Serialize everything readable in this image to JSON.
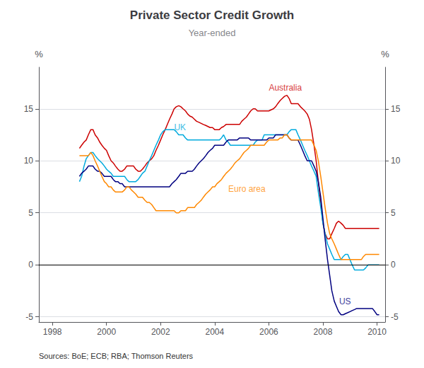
{
  "chart_data": {
    "type": "line",
    "title": "Private Sector Credit Growth",
    "subtitle": "Year-ended",
    "ylabel": "%",
    "y2label": "%",
    "source": "Sources: BoE; ECB; RBA; Thomson Reuters",
    "grid": true,
    "xlim": [
      1997.5,
      2010.3
    ],
    "xticks": [
      1998,
      2000,
      2002,
      2004,
      2006,
      2008,
      2010
    ],
    "ylim": [
      -5.5,
      19
    ],
    "yticks": [
      -5,
      0,
      5,
      10,
      15
    ],
    "y2lim": [
      -5.5,
      19
    ],
    "y2ticks": [
      -5,
      0,
      5,
      10,
      15
    ],
    "x": [
      1999.0,
      1999.08,
      1999.17,
      1999.25,
      1999.33,
      1999.42,
      1999.5,
      1999.58,
      1999.67,
      1999.75,
      1999.83,
      1999.92,
      2000.0,
      2000.08,
      2000.17,
      2000.25,
      2000.33,
      2000.42,
      2000.5,
      2000.58,
      2000.67,
      2000.75,
      2000.83,
      2000.92,
      2001.0,
      2001.08,
      2001.17,
      2001.25,
      2001.33,
      2001.42,
      2001.5,
      2001.58,
      2001.67,
      2001.75,
      2001.83,
      2001.92,
      2002.0,
      2002.08,
      2002.17,
      2002.25,
      2002.33,
      2002.42,
      2002.5,
      2002.58,
      2002.67,
      2002.75,
      2002.83,
      2002.92,
      2003.0,
      2003.08,
      2003.17,
      2003.25,
      2003.33,
      2003.42,
      2003.5,
      2003.58,
      2003.67,
      2003.75,
      2003.83,
      2003.92,
      2004.0,
      2004.08,
      2004.17,
      2004.25,
      2004.33,
      2004.42,
      2004.5,
      2004.58,
      2004.67,
      2004.75,
      2004.83,
      2004.92,
      2005.0,
      2005.08,
      2005.17,
      2005.25,
      2005.33,
      2005.42,
      2005.5,
      2005.58,
      2005.67,
      2005.75,
      2005.83,
      2005.92,
      2006.0,
      2006.08,
      2006.17,
      2006.25,
      2006.33,
      2006.42,
      2006.5,
      2006.58,
      2006.67,
      2006.75,
      2006.83,
      2006.92,
      2007.0,
      2007.08,
      2007.17,
      2007.25,
      2007.33,
      2007.42,
      2007.5,
      2007.58,
      2007.67,
      2007.75,
      2007.83,
      2007.92,
      2008.0,
      2008.08,
      2008.17,
      2008.25,
      2008.33,
      2008.42,
      2008.5,
      2008.58,
      2008.67,
      2008.75,
      2008.83,
      2008.92,
      2009.0,
      2009.08,
      2009.17,
      2009.25,
      2009.33,
      2009.42,
      2009.5,
      2009.58,
      2009.67,
      2009.75,
      2009.83,
      2009.92,
      2010.0,
      2010.08
    ],
    "series": [
      {
        "name": "Australia",
        "color": "#cc0000",
        "values": [
          11.2,
          11.5,
          11.8,
          12.0,
          12.5,
          13.0,
          13.0,
          12.5,
          12.2,
          11.8,
          11.5,
          11.2,
          11.0,
          10.5,
          10.0,
          9.8,
          9.5,
          9.2,
          9.0,
          9.0,
          9.2,
          9.5,
          9.5,
          9.5,
          9.5,
          9.2,
          9.0,
          9.0,
          9.2,
          9.5,
          9.8,
          10.0,
          10.2,
          10.5,
          11.0,
          11.5,
          12.0,
          12.5,
          13.0,
          13.5,
          14.0,
          14.5,
          15.0,
          15.2,
          15.3,
          15.2,
          15.0,
          14.8,
          14.5,
          14.3,
          14.2,
          14.0,
          13.8,
          13.7,
          13.6,
          13.5,
          13.4,
          13.3,
          13.2,
          13.2,
          13.0,
          13.0,
          13.0,
          13.2,
          13.3,
          13.5,
          13.5,
          13.5,
          13.5,
          13.5,
          13.5,
          13.5,
          13.8,
          14.0,
          14.2,
          14.5,
          14.8,
          15.0,
          15.0,
          14.8,
          14.8,
          14.8,
          14.8,
          14.8,
          14.8,
          14.9,
          15.0,
          15.2,
          15.5,
          15.8,
          16.0,
          16.2,
          16.3,
          16.0,
          15.5,
          15.5,
          15.5,
          15.5,
          15.2,
          15.0,
          14.8,
          14.5,
          14.0,
          13.0,
          11.5,
          10.0,
          8.0,
          6.0,
          4.0,
          3.0,
          2.5,
          2.5,
          3.0,
          3.5,
          4.0,
          4.2,
          4.0,
          3.8,
          3.5,
          3.5,
          3.5,
          3.5,
          3.5,
          3.5,
          3.5,
          3.5,
          3.5,
          3.5,
          3.5,
          3.5,
          3.5,
          3.5,
          3.5,
          3.5
        ]
      },
      {
        "name": "UK",
        "color": "#00aadd",
        "values": [
          8.0,
          8.5,
          9.5,
          10.2,
          10.5,
          10.8,
          10.8,
          10.5,
          10.2,
          10.0,
          9.8,
          9.5,
          9.2,
          9.0,
          8.8,
          8.5,
          8.5,
          8.5,
          8.5,
          8.5,
          8.5,
          8.2,
          8.0,
          8.0,
          8.0,
          8.0,
          8.2,
          8.5,
          8.8,
          9.0,
          9.5,
          10.0,
          10.5,
          11.0,
          11.5,
          12.0,
          12.5,
          12.8,
          13.0,
          13.0,
          13.0,
          13.0,
          13.0,
          12.8,
          12.5,
          12.5,
          12.5,
          12.2,
          12.0,
          12.0,
          12.0,
          12.0,
          12.0,
          12.0,
          12.0,
          12.0,
          12.0,
          12.0,
          12.0,
          12.0,
          12.0,
          12.0,
          12.0,
          12.2,
          12.5,
          12.0,
          11.8,
          11.5,
          11.5,
          11.5,
          11.5,
          11.5,
          11.5,
          11.5,
          11.5,
          11.5,
          11.5,
          11.5,
          11.8,
          12.0,
          12.0,
          12.0,
          12.5,
          12.5,
          12.5,
          12.5,
          12.5,
          12.5,
          12.5,
          12.5,
          12.5,
          12.5,
          12.5,
          12.8,
          13.0,
          13.0,
          13.0,
          12.5,
          12.0,
          11.5,
          11.0,
          10.5,
          10.0,
          9.5,
          9.0,
          8.5,
          7.0,
          5.5,
          4.0,
          3.0,
          2.0,
          1.5,
          1.0,
          0.5,
          0.5,
          0.5,
          0.5,
          0.8,
          1.0,
          1.0,
          0.5,
          0.0,
          -0.5,
          -0.5,
          -0.5,
          -0.5,
          -0.5,
          -0.3,
          0.0,
          0.0,
          0.0,
          0.0,
          0.0,
          0.0
        ]
      },
      {
        "name": "US",
        "color": "#000080",
        "values": [
          8.5,
          8.8,
          9.0,
          9.2,
          9.5,
          9.5,
          9.5,
          9.2,
          9.0,
          9.0,
          8.8,
          8.5,
          8.5,
          8.5,
          8.5,
          8.2,
          8.0,
          8.0,
          7.8,
          7.8,
          7.5,
          7.5,
          7.5,
          7.5,
          7.5,
          7.5,
          7.5,
          7.5,
          7.5,
          7.5,
          7.5,
          7.5,
          7.5,
          7.5,
          7.5,
          7.5,
          7.5,
          7.5,
          7.5,
          7.5,
          7.5,
          7.8,
          8.0,
          8.2,
          8.5,
          8.8,
          8.8,
          8.8,
          9.0,
          9.0,
          9.0,
          9.2,
          9.5,
          9.8,
          10.0,
          10.2,
          10.5,
          10.8,
          11.0,
          11.2,
          11.5,
          11.5,
          11.5,
          11.5,
          11.5,
          11.8,
          12.0,
          12.0,
          12.0,
          12.0,
          12.0,
          12.2,
          12.2,
          12.2,
          12.2,
          12.2,
          12.0,
          12.0,
          12.0,
          12.0,
          12.0,
          12.0,
          12.0,
          12.0,
          12.2,
          12.2,
          12.2,
          12.5,
          12.5,
          12.5,
          12.5,
          12.5,
          12.5,
          12.2,
          12.0,
          12.0,
          12.0,
          12.0,
          11.5,
          11.0,
          10.5,
          10.0,
          10.0,
          10.0,
          9.5,
          9.0,
          8.0,
          6.5,
          4.5,
          2.5,
          0.5,
          -1.0,
          -2.5,
          -3.5,
          -4.0,
          -4.5,
          -4.8,
          -4.8,
          -4.7,
          -4.6,
          -4.5,
          -4.4,
          -4.3,
          -4.2,
          -4.2,
          -4.2,
          -4.2,
          -4.2,
          -4.2,
          -4.2,
          -4.2,
          -4.5,
          -4.8,
          -4.8
        ]
      },
      {
        "name": "Euro area",
        "color": "#ff8800",
        "values": [
          10.5,
          10.5,
          10.5,
          10.5,
          10.5,
          10.8,
          10.5,
          10.0,
          9.5,
          9.0,
          8.5,
          8.0,
          7.8,
          7.5,
          7.5,
          7.2,
          7.0,
          7.0,
          7.0,
          7.0,
          7.2,
          7.5,
          7.5,
          7.2,
          7.0,
          6.8,
          6.5,
          6.5,
          6.5,
          6.2,
          6.0,
          6.0,
          5.8,
          5.5,
          5.2,
          5.2,
          5.2,
          5.2,
          5.2,
          5.2,
          5.2,
          5.2,
          5.2,
          5.0,
          5.0,
          5.2,
          5.2,
          5.2,
          5.5,
          5.5,
          5.5,
          5.5,
          5.8,
          6.0,
          6.2,
          6.5,
          6.8,
          7.0,
          7.2,
          7.5,
          7.5,
          7.8,
          8.0,
          8.2,
          8.5,
          8.8,
          9.0,
          9.2,
          9.5,
          9.8,
          10.0,
          10.2,
          10.5,
          10.8,
          11.0,
          11.2,
          11.5,
          11.5,
          11.5,
          11.5,
          11.5,
          11.5,
          11.5,
          11.8,
          12.0,
          12.0,
          12.0,
          12.0,
          12.0,
          12.2,
          12.2,
          12.5,
          12.5,
          12.2,
          12.0,
          12.0,
          12.0,
          12.0,
          12.0,
          12.0,
          12.0,
          12.0,
          12.0,
          12.0,
          11.5,
          11.0,
          10.0,
          8.5,
          7.0,
          5.5,
          4.0,
          3.0,
          2.5,
          2.0,
          1.5,
          1.0,
          0.5,
          0.5,
          0.5,
          0.5,
          0.5,
          0.5,
          0.5,
          0.5,
          0.5,
          0.5,
          0.8,
          1.0,
          1.0,
          1.0,
          1.0,
          1.0,
          1.0,
          1.0
        ]
      }
    ],
    "annotations": [
      {
        "text": "Australia",
        "x": 2006.0,
        "y": 17.0,
        "color": "#cc0000"
      },
      {
        "text": "UK",
        "x": 2002.5,
        "y": 13.2,
        "color": "#00aadd"
      },
      {
        "text": "US",
        "x": 2008.6,
        "y": -3.5,
        "color": "#000080"
      },
      {
        "text": "Euro area",
        "x": 2004.5,
        "y": 7.3,
        "color": "#ff8800"
      }
    ]
  }
}
